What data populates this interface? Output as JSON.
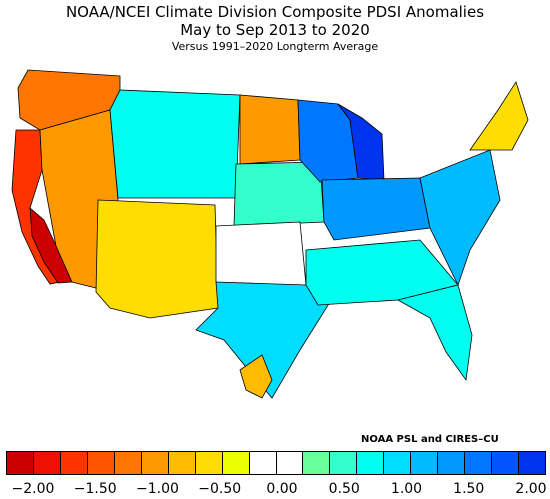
{
  "title": {
    "line1": "NOAA/NCEI Climate Division Composite PDSI Anomalies",
    "line2": "May to Sep 2013 to 2020",
    "line3": "Versus 1991–2020 Longterm Average"
  },
  "credit": "NOAA PSL and CIRES–CU",
  "legend": {
    "colors": [
      "#cc0000",
      "#ee1100",
      "#ff3300",
      "#ff5500",
      "#ff7700",
      "#ff9900",
      "#ffbb00",
      "#ffdd00",
      "#eeff00",
      "#ffffff",
      "#ffffff",
      "#66ff99",
      "#33ffcc",
      "#00ffee",
      "#00ddff",
      "#00bbff",
      "#0099ff",
      "#0077ff",
      "#0055ff",
      "#0033ee"
    ],
    "ticks": [
      "−2.00",
      "−1.50",
      "−1.00",
      "−0.50",
      "0.00",
      "0.50",
      "1.00",
      "1.50",
      "2.00"
    ]
  },
  "regions": [
    {
      "name": "pacific-northwest",
      "color": "#ff7700"
    },
    {
      "name": "california-coast",
      "color": "#ff3300"
    },
    {
      "name": "central-california",
      "color": "#cc0000"
    },
    {
      "name": "great-basin",
      "color": "#ff9900"
    },
    {
      "name": "southwest",
      "color": "#ffdd00"
    },
    {
      "name": "northern-rockies",
      "color": "#00ffee"
    },
    {
      "name": "northern-plains",
      "color": "#ff9900"
    },
    {
      "name": "central-plains",
      "color": "#33ffcc"
    },
    {
      "name": "southern-plains",
      "color": "#ffffff"
    },
    {
      "name": "texas-south",
      "color": "#00ddff"
    },
    {
      "name": "upper-midwest",
      "color": "#0077ff"
    },
    {
      "name": "wisconsin-michigan",
      "color": "#0033ee"
    },
    {
      "name": "ohio-valley",
      "color": "#0099ff"
    },
    {
      "name": "southeast",
      "color": "#00ffee"
    },
    {
      "name": "florida",
      "color": "#00ffee"
    },
    {
      "name": "mid-atlantic",
      "color": "#00bbff"
    },
    {
      "name": "new-england",
      "color": "#ffdd00"
    },
    {
      "name": "gulf-coast",
      "color": "#ffbb00"
    }
  ]
}
